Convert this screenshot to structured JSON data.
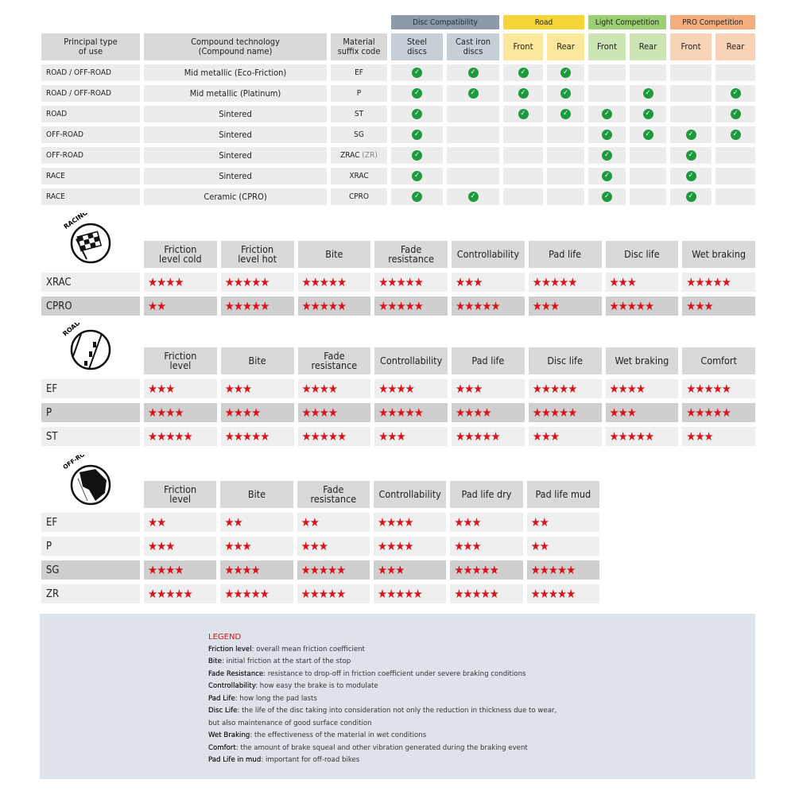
{
  "compatibility": {
    "groups": [
      {
        "label": "Disc Compatibility",
        "color": "#8d9aa8",
        "sub_color": "#c6ced7"
      },
      {
        "label": "Road",
        "color": "#f6d535",
        "sub_color": "#fbe89c"
      },
      {
        "label": "Light Competition",
        "color": "#9dcf74",
        "sub_color": "#cde5b5"
      },
      {
        "label": "PRO Competition",
        "color": "#f4ae7e",
        "sub_color": "#f9d3b7"
      }
    ],
    "headers": [
      "Principal type\nof use",
      "Compound technology\n(Compound name)",
      "Material\nsuffix code",
      "Steel\ndiscs",
      "Cast iron\ndiscs",
      "Front",
      "Rear",
      "Front",
      "Rear",
      "Front",
      "Rear"
    ],
    "check_color": "#1d9a3e",
    "rows": [
      {
        "use": "ROAD / OFF-ROAD",
        "compound": "Mid metallic (Eco-Friction)",
        "code": "EF",
        "code_alt": "",
        "checks": [
          true,
          true,
          true,
          true,
          false,
          false,
          false,
          false
        ]
      },
      {
        "use": "ROAD / OFF-ROAD",
        "compound": "Mid metallic (Platinum)",
        "code": "P",
        "code_alt": "",
        "checks": [
          true,
          true,
          true,
          true,
          false,
          true,
          false,
          true
        ]
      },
      {
        "use": "ROAD",
        "compound": "Sintered",
        "code": "ST",
        "code_alt": "",
        "checks": [
          true,
          false,
          true,
          true,
          true,
          true,
          false,
          true
        ]
      },
      {
        "use": "OFF-ROAD",
        "compound": "Sintered",
        "code": "SG",
        "code_alt": "",
        "checks": [
          true,
          false,
          false,
          false,
          true,
          true,
          true,
          true
        ]
      },
      {
        "use": "OFF-ROAD",
        "compound": "Sintered",
        "code": "ZRAC",
        "code_alt": "(ZR)",
        "checks": [
          true,
          false,
          false,
          false,
          true,
          false,
          true,
          false
        ]
      },
      {
        "use": "RACE",
        "compound": "Sintered",
        "code": "XRAC",
        "code_alt": "",
        "checks": [
          true,
          false,
          false,
          false,
          true,
          false,
          true,
          false
        ]
      },
      {
        "use": "RACE",
        "compound": "Ceramic (CPRO)",
        "code": "CPRO",
        "code_alt": "",
        "checks": [
          true,
          true,
          false,
          false,
          true,
          false,
          true,
          false
        ]
      }
    ]
  },
  "ratings": [
    {
      "id": "racing",
      "icon_label": "RACING",
      "icon": "checkered-flag-icon",
      "headers": [
        "Friction\nlevel cold",
        "Friction\nlevel hot",
        "Bite",
        "Fade\nresistance",
        "Controllability",
        "Pad life",
        "Disc life",
        "Wet braking"
      ],
      "rows": [
        {
          "code": "XRAC",
          "shade": "light",
          "stars": [
            4,
            5,
            5,
            5,
            3,
            5,
            3,
            5
          ]
        },
        {
          "code": "CPRO",
          "shade": "dark",
          "stars": [
            2,
            5,
            5,
            5,
            5,
            3,
            5,
            3
          ]
        }
      ]
    },
    {
      "id": "road",
      "icon_label": "ROAD",
      "icon": "road-icon",
      "headers": [
        "Friction\nlevel",
        "Bite",
        "Fade\nresistance",
        "Controllability",
        "Pad life",
        "Disc life",
        "Wet braking",
        "Comfort"
      ],
      "rows": [
        {
          "code": "EF",
          "shade": "light",
          "stars": [
            3,
            3,
            4,
            4,
            3,
            5,
            4,
            5
          ]
        },
        {
          "code": "P",
          "shade": "dark",
          "stars": [
            4,
            4,
            4,
            5,
            4,
            5,
            3,
            5
          ]
        },
        {
          "code": "ST",
          "shade": "light",
          "stars": [
            5,
            5,
            5,
            3,
            5,
            3,
            5,
            3
          ]
        }
      ]
    },
    {
      "id": "offroad",
      "icon_label": "OFF-ROAD",
      "icon": "off-road-icon",
      "headers": [
        "Friction\nlevel",
        "Bite",
        "Fade\nresistance",
        "Controllability",
        "Pad life dry",
        "Pad life mud"
      ],
      "rows": [
        {
          "code": "EF",
          "shade": "light",
          "stars": [
            2,
            2,
            2,
            4,
            3,
            2
          ]
        },
        {
          "code": "P",
          "shade": "light",
          "stars": [
            3,
            3,
            3,
            4,
            3,
            2
          ]
        },
        {
          "code": "SG",
          "shade": "dark",
          "stars": [
            4,
            4,
            5,
            3,
            5,
            5
          ]
        },
        {
          "code": "ZR",
          "shade": "light",
          "stars": [
            5,
            5,
            5,
            5,
            5,
            5
          ]
        }
      ]
    }
  ],
  "star_color": "#d7141c",
  "legend": {
    "title": "LEGEND",
    "items": [
      {
        "term": "Friction level",
        "desc": ": overall mean friction coefficient"
      },
      {
        "term": "Bite",
        "desc": ": initial friction at the start of the stop"
      },
      {
        "term": "Fade Resistance",
        "desc": ": resistance to drop-off in friction coefficient under severe braking conditions"
      },
      {
        "term": "Controllability",
        "desc": ": how easy the brake is to modulate"
      },
      {
        "term": "Pad Life",
        "desc": ": how long the pad lasts"
      },
      {
        "term": "Disc Life",
        "desc": ": the life of the disc taking into consideration not only the reduction in thickness due to wear,"
      },
      {
        "term": "",
        "desc": "but also maintenance of good surface condition"
      },
      {
        "term": "Wet Braking",
        "desc": ": the effectiveness of the material in wet conditions"
      },
      {
        "term": "Comfort",
        "desc": ": the amount of brake squeal and other vibration generated during the braking event"
      },
      {
        "term": "Pad Life in mud",
        "desc": ": important for off-road bikes"
      }
    ]
  }
}
